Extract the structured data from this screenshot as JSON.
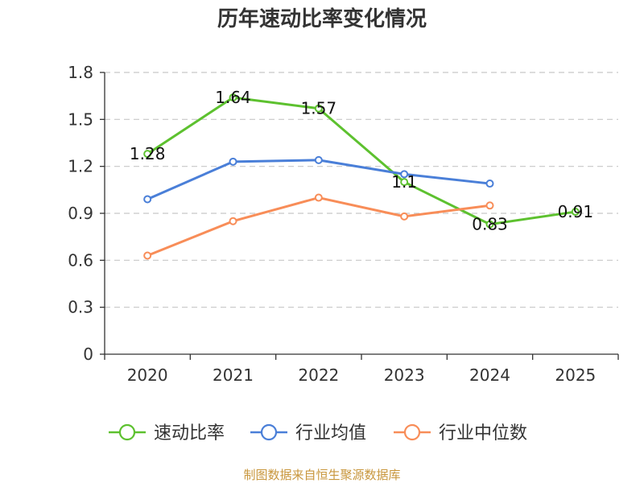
{
  "chart_data": {
    "type": "line",
    "title": "历年速动比率变化情况",
    "categories": [
      "2020",
      "2021",
      "2022",
      "2023",
      "2024",
      "2025"
    ],
    "ylim": [
      0,
      1.8
    ],
    "yticks": [
      "0",
      "0.3",
      "0.6",
      "0.9",
      "1.2",
      "1.5",
      "1.8"
    ],
    "grid": true,
    "legend_position": "bottom",
    "series": [
      {
        "name": "速动比率",
        "color": "#5dc12f",
        "values": [
          1.28,
          1.64,
          1.57,
          1.1,
          0.83,
          0.91
        ],
        "labels": [
          "1.28",
          "1.64",
          "1.57",
          "1.1",
          "0.83",
          "0.91"
        ],
        "show_labels": true
      },
      {
        "name": "行业均值",
        "color": "#4a7fd8",
        "values": [
          0.99,
          1.23,
          1.24,
          1.15,
          1.09,
          null
        ],
        "show_labels": false
      },
      {
        "name": "行业中位数",
        "color": "#f88d58",
        "values": [
          0.63,
          0.85,
          1.0,
          0.88,
          0.95,
          null
        ],
        "show_labels": false
      }
    ],
    "source": "制图数据来自恒生聚源数据库",
    "source_color": "#c8963c",
    "axis_color": "#333333",
    "grid_color": "#c8c8c8"
  }
}
